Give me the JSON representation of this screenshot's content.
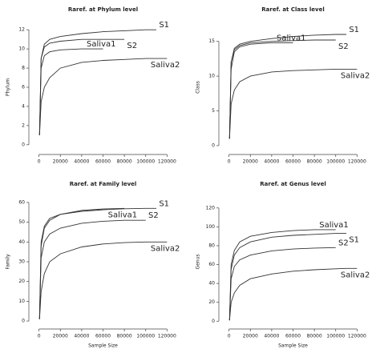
{
  "chart_data": [
    {
      "type": "line",
      "title": "Raref. at Phylum level",
      "y_label": "Phylum",
      "x": [
        500,
        2000,
        5000,
        10000,
        20000,
        40000,
        60000,
        80000,
        100000,
        110000,
        120000
      ],
      "xlim": [
        -5000,
        125000
      ],
      "xticks": [
        0,
        20000,
        40000,
        60000,
        80000,
        100000,
        120000
      ],
      "ylim": [
        -0.6,
        12.6
      ],
      "yticks": [
        0,
        2,
        4,
        6,
        8,
        10,
        12
      ],
      "series": [
        {
          "name": "S1",
          "color": "#333333",
          "values": [
            1,
            9,
            10.5,
            11,
            11.3,
            11.6,
            11.8,
            11.9,
            12,
            12,
            null
          ]
        },
        {
          "name": "S2",
          "color": "#333333",
          "values": [
            1,
            9,
            10.2,
            10.6,
            10.8,
            11,
            11,
            11,
            null,
            null,
            null
          ]
        },
        {
          "name": "Saliva1",
          "color": "#333333",
          "values": [
            1,
            8,
            9.3,
            9.7,
            9.9,
            10,
            10,
            null,
            null,
            null,
            null
          ]
        },
        {
          "name": "Saliva2",
          "color": "#333333",
          "values": [
            1,
            4.5,
            6,
            7,
            8,
            8.6,
            8.8,
            8.9,
            9,
            9,
            9
          ]
        }
      ]
    },
    {
      "type": "line",
      "title": "Raref. at Class level",
      "y_label": "Class",
      "x": [
        500,
        2000,
        5000,
        10000,
        20000,
        40000,
        60000,
        80000,
        100000,
        110000,
        120000
      ],
      "xlim": [
        -5000,
        125000
      ],
      "xticks": [
        0,
        20000,
        40000,
        60000,
        80000,
        100000,
        120000
      ],
      "ylim": [
        -0.7,
        17.5
      ],
      "yticks": [
        0,
        5,
        10,
        15
      ],
      "series": [
        {
          "name": "S1",
          "color": "#333333",
          "values": [
            1,
            12,
            14,
            14.6,
            15,
            15.4,
            15.7,
            15.9,
            16,
            16,
            null
          ]
        },
        {
          "name": "S2",
          "color": "#333333",
          "values": [
            1,
            12,
            13.8,
            14.4,
            14.8,
            15,
            15.1,
            15.2,
            15.2,
            null,
            null
          ]
        },
        {
          "name": "Saliva1",
          "color": "#333333",
          "values": [
            1,
            11,
            13.5,
            14.2,
            14.6,
            14.8,
            14.8,
            null,
            null,
            null,
            null
          ]
        },
        {
          "name": "Saliva2",
          "color": "#333333",
          "values": [
            1,
            6,
            8,
            9.2,
            10,
            10.6,
            10.8,
            10.9,
            11,
            11,
            11
          ]
        }
      ]
    },
    {
      "type": "line",
      "title": "Raref. at Family level",
      "y_label": "Family",
      "x_label": "Sample Size",
      "x": [
        500,
        2000,
        5000,
        10000,
        20000,
        40000,
        60000,
        80000,
        100000,
        110000,
        120000
      ],
      "xlim": [
        -5000,
        125000
      ],
      "xticks": [
        0,
        20000,
        40000,
        60000,
        80000,
        100000,
        120000
      ],
      "ylim": [
        -2,
        62
      ],
      "yticks": [
        0,
        10,
        20,
        30,
        40,
        50,
        60
      ],
      "series": [
        {
          "name": "S1",
          "color": "#333333",
          "values": [
            1,
            40,
            48,
            52,
            54,
            55.5,
            56.3,
            56.8,
            57,
            57,
            null
          ]
        },
        {
          "name": "Saliva1",
          "color": "#333333",
          "values": [
            1,
            38,
            47,
            51,
            54,
            56,
            56.7,
            57,
            null,
            null,
            null
          ]
        },
        {
          "name": "S2",
          "color": "#333333",
          "values": [
            1,
            32,
            40,
            44,
            47,
            49.5,
            50.5,
            51,
            51,
            null,
            null
          ]
        },
        {
          "name": "Saliva2",
          "color": "#333333",
          "values": [
            1,
            15,
            24,
            30,
            34,
            37.5,
            39,
            39.7,
            40,
            40,
            40
          ]
        }
      ]
    },
    {
      "type": "line",
      "title": "Raref. at Genus level",
      "y_label": "Genus",
      "x_label": "Sample Size",
      "x": [
        500,
        2000,
        5000,
        10000,
        20000,
        40000,
        60000,
        80000,
        100000,
        110000,
        120000
      ],
      "xlim": [
        -5000,
        125000
      ],
      "xticks": [
        0,
        20000,
        40000,
        60000,
        80000,
        100000,
        120000
      ],
      "ylim": [
        -4,
        130
      ],
      "yticks": [
        0,
        20,
        40,
        60,
        80,
        100,
        120
      ],
      "series": [
        {
          "name": "Saliva1",
          "color": "#333333",
          "values": [
            1,
            60,
            75,
            84,
            90,
            94,
            96,
            97,
            97,
            null,
            null
          ]
        },
        {
          "name": "S1",
          "color": "#333333",
          "values": [
            1,
            55,
            70,
            78,
            84,
            89,
            91,
            92,
            93,
            93,
            null
          ]
        },
        {
          "name": "S2",
          "color": "#333333",
          "values": [
            1,
            45,
            58,
            65,
            70,
            74.5,
            76.5,
            77.5,
            78,
            null,
            null
          ]
        },
        {
          "name": "Saliva2",
          "color": "#333333",
          "values": [
            1,
            20,
            30,
            38,
            45,
            50,
            53,
            54.5,
            55.5,
            56,
            56
          ]
        }
      ]
    }
  ]
}
